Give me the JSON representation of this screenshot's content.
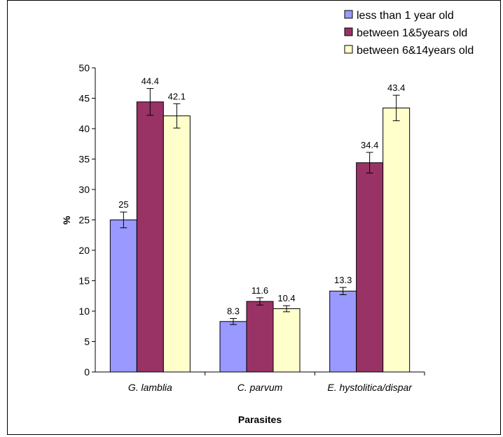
{
  "chart_data": {
    "type": "bar",
    "categories": [
      "G. lamblia",
      "C. parvum",
      "E. hystolitica/dispar"
    ],
    "series": [
      {
        "name": "less than 1 year old",
        "color": "#9999FF",
        "values": [
          25,
          8.3,
          13.3
        ],
        "errors": [
          1.3,
          0.5,
          0.6
        ],
        "labels": [
          "25",
          "8.3",
          "13.3"
        ]
      },
      {
        "name": "between 1&5years old",
        "color": "#993366",
        "values": [
          44.4,
          11.6,
          34.4
        ],
        "errors": [
          2.2,
          0.6,
          1.7
        ],
        "labels": [
          "44.4",
          "11.6",
          "34.4"
        ]
      },
      {
        "name": "between 6&14years old",
        "color": "#FFFFCC",
        "values": [
          42.1,
          10.4,
          43.4
        ],
        "errors": [
          2.0,
          0.5,
          2.1
        ],
        "labels": [
          "42.1",
          "10.4",
          "43.4"
        ]
      }
    ],
    "xlabel": "Parasites",
    "ylabel": "%",
    "ylim": [
      0,
      50
    ],
    "yticks": [
      "0",
      "5",
      "10",
      "15",
      "20",
      "25",
      "30",
      "35",
      "40",
      "45",
      "50"
    ],
    "legend_position": "top-right",
    "grid": false
  }
}
